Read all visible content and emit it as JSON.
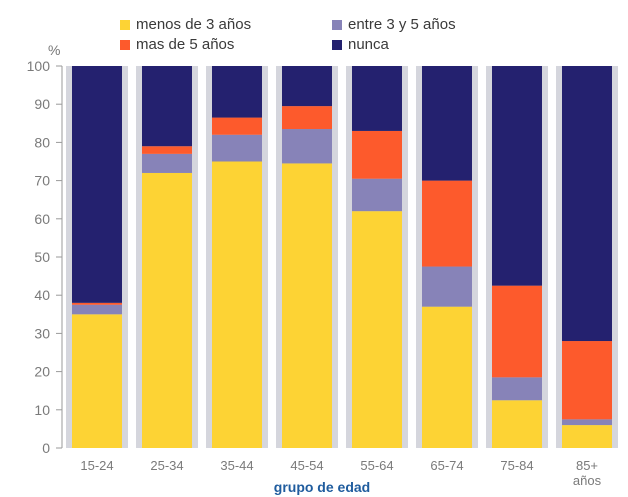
{
  "chart_data": {
    "type": "bar",
    "stacked": true,
    "y_unit": "%",
    "xlabel": "grupo de edad",
    "ylabel": "",
    "ylim": [
      0,
      100
    ],
    "yticks": [
      "0",
      "10",
      "20",
      "30",
      "40",
      "50",
      "60",
      "70",
      "80",
      "90",
      "100"
    ],
    "ytick_values": [
      0,
      10,
      20,
      30,
      40,
      50,
      60,
      70,
      80,
      90,
      100
    ],
    "grid": false,
    "legend_position": "top",
    "categories": [
      "15-24",
      "25-34",
      "35-44",
      "45-54",
      "55-64",
      "65-74",
      "75-84",
      "85+ años"
    ],
    "series": [
      {
        "name": "menos de 3 años",
        "color": "#FDD334",
        "values": [
          35,
          72,
          75,
          74.5,
          62,
          37,
          12.5,
          6
        ]
      },
      {
        "name": "entre 3 y 5 años",
        "color": "#8783B8",
        "values": [
          2.5,
          5,
          7,
          9,
          8.5,
          10.5,
          6,
          1.5
        ]
      },
      {
        "name": "mas de 5 años",
        "color": "#FD5A2C",
        "values": [
          0.5,
          2,
          4.5,
          6,
          12.5,
          22.5,
          24,
          20.5
        ]
      },
      {
        "name": "nunca",
        "color": "#24216F",
        "values": [
          62,
          21,
          13.5,
          10.5,
          17,
          30,
          57.5,
          72
        ]
      }
    ],
    "band_color": "#D5D6DD"
  }
}
